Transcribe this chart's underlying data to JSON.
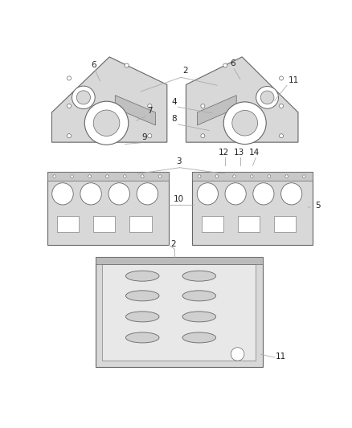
{
  "bg_color": "#ffffff",
  "line_color": "#aaaaaa",
  "part_color": "#d8d8d8",
  "part_edge": "#666666",
  "label_color": "#222222",
  "label_fontsize": 7.5,
  "fig_w": 4.38,
  "fig_h": 5.33
}
